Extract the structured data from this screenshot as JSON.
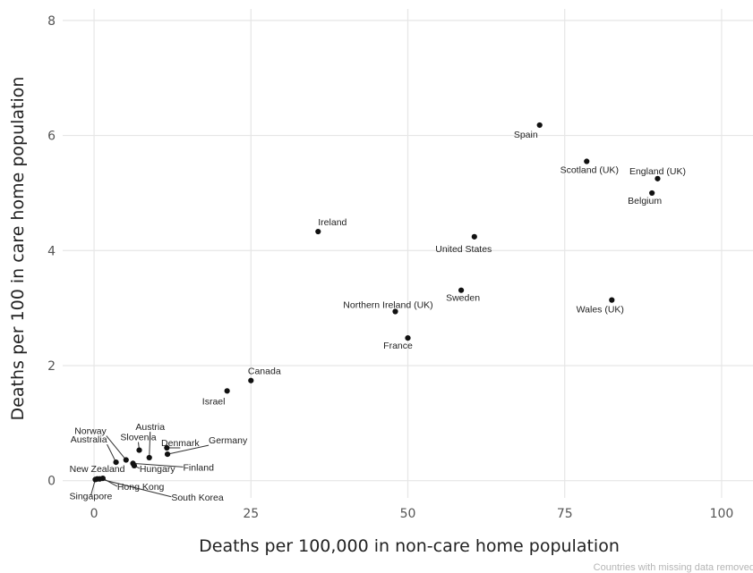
{
  "chart_data": {
    "type": "scatter",
    "xlabel": "Deaths per 100,000 in non-care home population",
    "ylabel": "Deaths per 100 in care home population",
    "xlim": [
      -5,
      105
    ],
    "ylim": [
      -0.3,
      8.2
    ],
    "x_ticks": [
      0,
      25,
      50,
      75,
      100
    ],
    "y_ticks": [
      0,
      2,
      4,
      6,
      8
    ],
    "grid": true,
    "footnote": "Countries with missing data removed",
    "points": [
      {
        "label": "Spain",
        "x": 71.0,
        "y": 6.18
      },
      {
        "label": "Scotland (UK)",
        "x": 78.5,
        "y": 5.55
      },
      {
        "label": "England (UK)",
        "x": 89.8,
        "y": 5.25
      },
      {
        "label": "Belgium",
        "x": 88.9,
        "y": 5.0
      },
      {
        "label": "Ireland",
        "x": 35.7,
        "y": 4.33
      },
      {
        "label": "United States",
        "x": 60.6,
        "y": 4.24
      },
      {
        "label": "Sweden",
        "x": 58.5,
        "y": 3.31
      },
      {
        "label": "Wales (UK)",
        "x": 82.5,
        "y": 3.14
      },
      {
        "label": "Northern Ireland (UK)",
        "x": 48.0,
        "y": 2.94
      },
      {
        "label": "France",
        "x": 50.0,
        "y": 2.48
      },
      {
        "label": "Canada",
        "x": 25.0,
        "y": 1.74
      },
      {
        "label": "Israel",
        "x": 21.2,
        "y": 1.56
      },
      {
        "label": "Austria",
        "x": 8.8,
        "y": 0.4
      },
      {
        "label": "Norway",
        "x": 5.1,
        "y": 0.36
      },
      {
        "label": "Slovenia",
        "x": 7.2,
        "y": 0.53
      },
      {
        "label": "Denmark",
        "x": 11.6,
        "y": 0.57
      },
      {
        "label": "Germany",
        "x": 11.7,
        "y": 0.46
      },
      {
        "label": "Finland",
        "x": 6.2,
        "y": 0.3
      },
      {
        "label": "Australia",
        "x": 3.5,
        "y": 0.32
      },
      {
        "label": "Hungary",
        "x": 6.4,
        "y": 0.26
      },
      {
        "label": "New Zealand",
        "x": 0.5,
        "y": 0.03
      },
      {
        "label": "Singapore",
        "x": 0.2,
        "y": 0.02
      },
      {
        "label": "Hong Kong",
        "x": 1.4,
        "y": 0.04
      },
      {
        "label": "South Korea",
        "x": 0.9,
        "y": 0.03
      }
    ]
  }
}
